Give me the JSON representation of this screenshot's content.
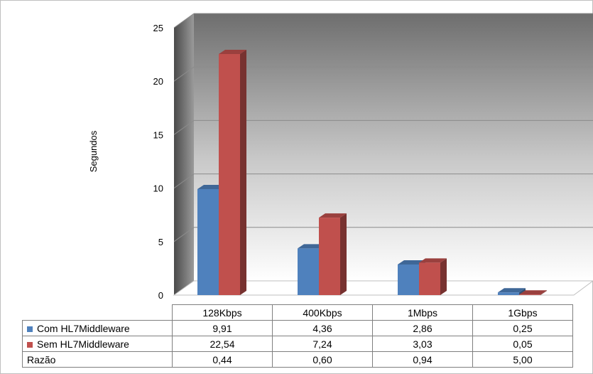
{
  "chart_data": {
    "type": "bar",
    "title": "",
    "xlabel": "",
    "ylabel": "Segundos",
    "ylim": [
      0,
      25
    ],
    "yticks": [
      0,
      5,
      10,
      15,
      20,
      25
    ],
    "categories": [
      "128Kbps",
      "400Kbps",
      "1Mbps",
      "1Gbps"
    ],
    "series": [
      {
        "name": "Com HL7Middleware",
        "color": "#4f81bd",
        "values": [
          9.91,
          4.36,
          2.86,
          0.25
        ],
        "labels": [
          "9,91",
          "4,36",
          "2,86",
          "0,25"
        ]
      },
      {
        "name": "Sem HL7Middleware",
        "color": "#c0504d",
        "values": [
          22.54,
          7.24,
          3.03,
          0.05
        ],
        "labels": [
          "22,54",
          "7,24",
          "3,03",
          "0,05"
        ]
      }
    ],
    "extra_rows": [
      {
        "name": "Razão",
        "labels": [
          "0,44",
          "0,60",
          "0,94",
          "5,00"
        ]
      }
    ],
    "grid": true,
    "legend": "data-table"
  }
}
